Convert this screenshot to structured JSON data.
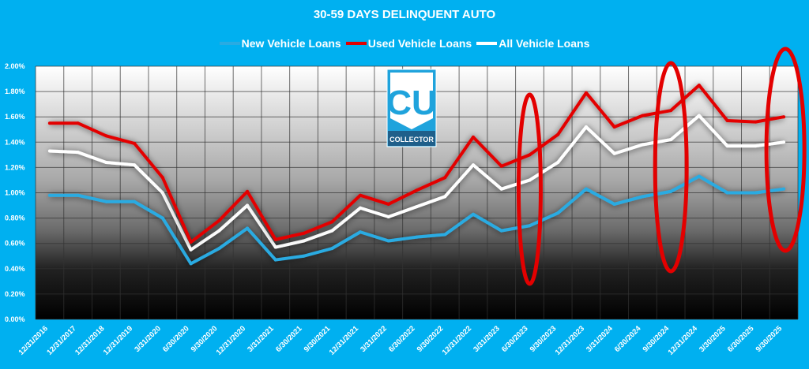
{
  "chart_data": {
    "type": "line",
    "title": "30-59 DAYS DELINQUENT AUTO",
    "categories": [
      "12/31/2016",
      "12/31/2017",
      "12/31/2018",
      "12/31/2019",
      "3/31/2020",
      "6/30/2020",
      "9/30/2020",
      "12/31/2020",
      "3/31/2021",
      "6/30/2021",
      "9/30/2021",
      "12/31/2021",
      "3/31/2022",
      "6/30/2022",
      "9/30/2022",
      "12/31/2022",
      "3/31/2023",
      "6/30/2023",
      "9/30/2023",
      "12/31/2023",
      "3/31/2024",
      "6/30/2024",
      "9/30/2024",
      "12/31/2024",
      "3/30/2025",
      "6/30/2025",
      "9/30/2025"
    ],
    "series": [
      {
        "name": "New Vehicle Loans",
        "color": "#29abe2",
        "values": [
          0.98,
          0.98,
          0.93,
          0.93,
          0.8,
          0.44,
          0.56,
          0.72,
          0.47,
          0.5,
          0.56,
          0.69,
          0.62,
          0.65,
          0.67,
          0.83,
          0.7,
          0.74,
          0.84,
          1.03,
          0.91,
          0.97,
          1.01,
          1.13,
          1.0,
          1.0,
          1.03
        ]
      },
      {
        "name": "Used Vehicle Loans",
        "color": "#e30000",
        "values": [
          1.55,
          1.55,
          1.45,
          1.39,
          1.12,
          0.61,
          0.78,
          1.01,
          0.63,
          0.68,
          0.77,
          0.98,
          0.91,
          1.02,
          1.12,
          1.44,
          1.21,
          1.3,
          1.46,
          1.79,
          1.52,
          1.61,
          1.65,
          1.85,
          1.57,
          1.56,
          1.6
        ]
      },
      {
        "name": "All Vehicle Loans",
        "color": "#ffffff",
        "values": [
          1.33,
          1.32,
          1.24,
          1.22,
          1.0,
          0.55,
          0.7,
          0.9,
          0.57,
          0.62,
          0.7,
          0.88,
          0.81,
          0.89,
          0.97,
          1.22,
          1.03,
          1.1,
          1.24,
          1.52,
          1.31,
          1.38,
          1.42,
          1.61,
          1.37,
          1.37,
          1.4
        ]
      }
    ],
    "yticks": [
      "0.00%",
      "0.20%",
      "0.40%",
      "0.60%",
      "0.80%",
      "1.00%",
      "1.20%",
      "1.40%",
      "1.60%",
      "1.80%",
      "2.00%"
    ],
    "ylim": [
      0,
      2.0
    ],
    "yunit": "%",
    "grid": true,
    "legend_position": "top",
    "highlighted_categories": [
      "6/30/2023",
      "9/30/2024",
      "9/30/2025"
    ],
    "highlight_color": "#e30000"
  },
  "logo": {
    "text": "CU",
    "subtext": "COLLECTOR"
  }
}
